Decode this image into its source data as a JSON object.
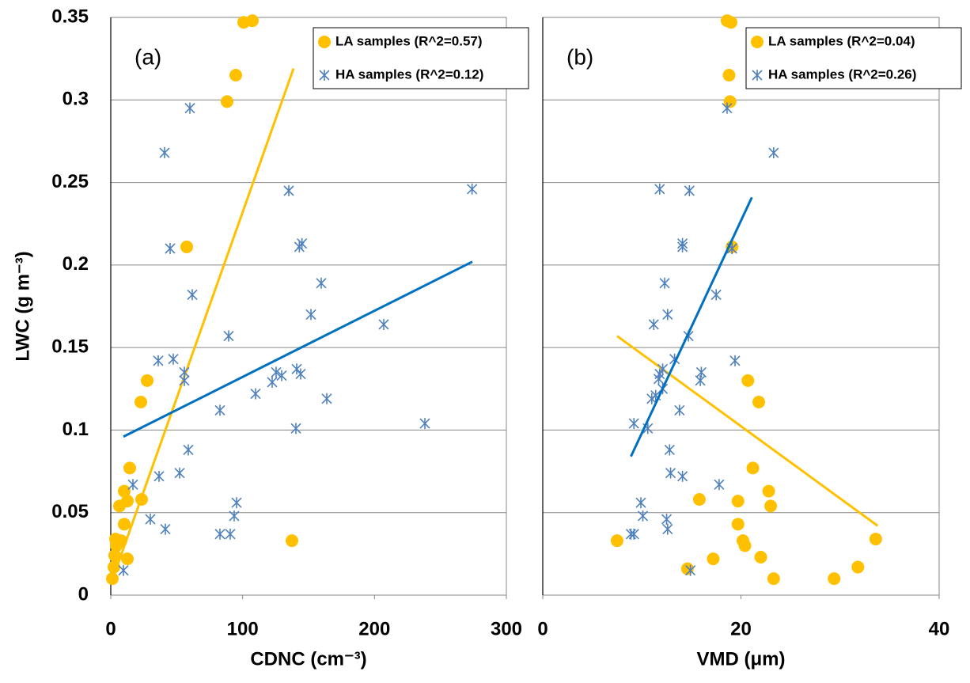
{
  "chart_data": [
    {
      "type": "scatter",
      "panel_label": "(a)",
      "xlabel": "CDNC (cm⁻³)",
      "ylabel": "LWC (g m⁻³)",
      "xlim": [
        0,
        300
      ],
      "xticks": [
        0,
        100,
        200,
        300
      ],
      "ylim": [
        0,
        0.35
      ],
      "yticks": [
        0,
        0.05,
        0.1,
        0.15,
        0.2,
        0.25,
        0.3,
        0.35
      ],
      "grid": true,
      "legend": "upper right",
      "series": [
        {
          "name": "LA samples (R^2=0.57)",
          "color": "#ffc000",
          "marker": "circle",
          "trend_color": "#ffc000",
          "x": [
            100.8,
            107.4,
            94.8,
            88.2,
            57.6,
            27.6,
            22.8,
            14.4,
            10.2,
            6.6,
            12.6,
            23.4,
            10.2,
            12.6,
            7.8,
            3.6,
            4.2,
            3,
            2.4,
            1.2,
            137.4
          ],
          "values": [
            0.347,
            0.348,
            0.315,
            0.299,
            0.211,
            0.13,
            0.117,
            0.077,
            0.063,
            0.054,
            0.057,
            0.058,
            0.043,
            0.022,
            0.033,
            0.034,
            0.03,
            0.024,
            0.017,
            0.01,
            0.033
          ],
          "trend": {
            "x": [
              0.6,
              138.6
            ],
            "values": [
              0.008,
              0.319
            ]
          }
        },
        {
          "name": "HA samples (R^2=0.12)",
          "color": "#4f81bd",
          "marker": "x",
          "trend_color": "#0070c0",
          "x": [
            60,
            40.8,
            135,
            274,
            45,
            143,
            145,
            61.8,
            159.6,
            151.8,
            89.4,
            207,
            36,
            47.4,
            55.8,
            55.8,
            141,
            144,
            125.4,
            129.6,
            122.4,
            109.8,
            163.8,
            82.8,
            140.4,
            238.2,
            58.8,
            16.8,
            36.6,
            52.2,
            95.4,
            93.6,
            30,
            41.4,
            82.8,
            90.6,
            9.6
          ],
          "values": [
            0.295,
            0.268,
            0.245,
            0.246,
            0.21,
            0.211,
            0.213,
            0.182,
            0.189,
            0.17,
            0.157,
            0.164,
            0.142,
            0.143,
            0.135,
            0.13,
            0.137,
            0.134,
            0.135,
            0.133,
            0.129,
            0.122,
            0.119,
            0.112,
            0.101,
            0.104,
            0.088,
            0.067,
            0.072,
            0.074,
            0.056,
            0.048,
            0.046,
            0.04,
            0.037,
            0.037,
            0.015
          ],
          "trend": {
            "x": [
              9.6,
              274.2
            ],
            "values": [
              0.096,
              0.202
            ]
          }
        }
      ]
    },
    {
      "type": "scatter",
      "panel_label": "(b)",
      "xlabel": "VMD (μm)",
      "xlim": [
        0,
        40
      ],
      "xticks": [
        0,
        20,
        40
      ],
      "ylim": [
        0,
        0.35
      ],
      "grid": true,
      "legend": "upper right",
      "series": [
        {
          "name": "LA samples (R^2=0.04)",
          "color": "#ffc000",
          "marker": "circle",
          "trend_color": "#ffc000",
          "x": [
            18.6,
            19,
            18.8,
            18.9,
            19.1,
            20.7,
            21.8,
            21.2,
            22.8,
            23,
            19.7,
            15.8,
            19.7,
            17.2,
            20.2,
            33.6,
            20.4,
            22,
            31.8,
            29.4,
            23.3,
            14.6,
            7.5
          ],
          "values": [
            0.348,
            0.347,
            0.315,
            0.299,
            0.211,
            0.13,
            0.117,
            0.077,
            0.063,
            0.054,
            0.057,
            0.058,
            0.043,
            0.022,
            0.033,
            0.034,
            0.03,
            0.023,
            0.017,
            0.01,
            0.01,
            0.016,
            0.033
          ],
          "trend": {
            "x": [
              7.5,
              33.8
            ],
            "values": [
              0.157,
              0.042
            ]
          }
        },
        {
          "name": "HA samples (R^2=0.26)",
          "color": "#4f81bd",
          "marker": "x",
          "trend_color": "#0070c0",
          "x": [
            18.6,
            23.3,
            11.8,
            14.8,
            19.1,
            14.1,
            14.1,
            17.5,
            12.3,
            12.6,
            14.7,
            11.2,
            19.4,
            13.3,
            16,
            15.9,
            12.1,
            11.8,
            11.7,
            12.1,
            11.4,
            11,
            13.8,
            10.6,
            9.2,
            12.8,
            17.8,
            14.1,
            12.9,
            9.9,
            10.1,
            12.5,
            12.6,
            8.9,
            9.2,
            14.9
          ],
          "values": [
            0.295,
            0.268,
            0.246,
            0.245,
            0.21,
            0.213,
            0.211,
            0.182,
            0.189,
            0.17,
            0.157,
            0.164,
            0.142,
            0.143,
            0.135,
            0.13,
            0.137,
            0.134,
            0.131,
            0.125,
            0.121,
            0.119,
            0.112,
            0.101,
            0.104,
            0.088,
            0.067,
            0.072,
            0.074,
            0.056,
            0.048,
            0.046,
            0.04,
            0.037,
            0.037,
            0.015
          ],
          "trend": {
            "x": [
              8.9,
              21.1
            ],
            "values": [
              0.084,
              0.241
            ]
          }
        }
      ]
    }
  ]
}
